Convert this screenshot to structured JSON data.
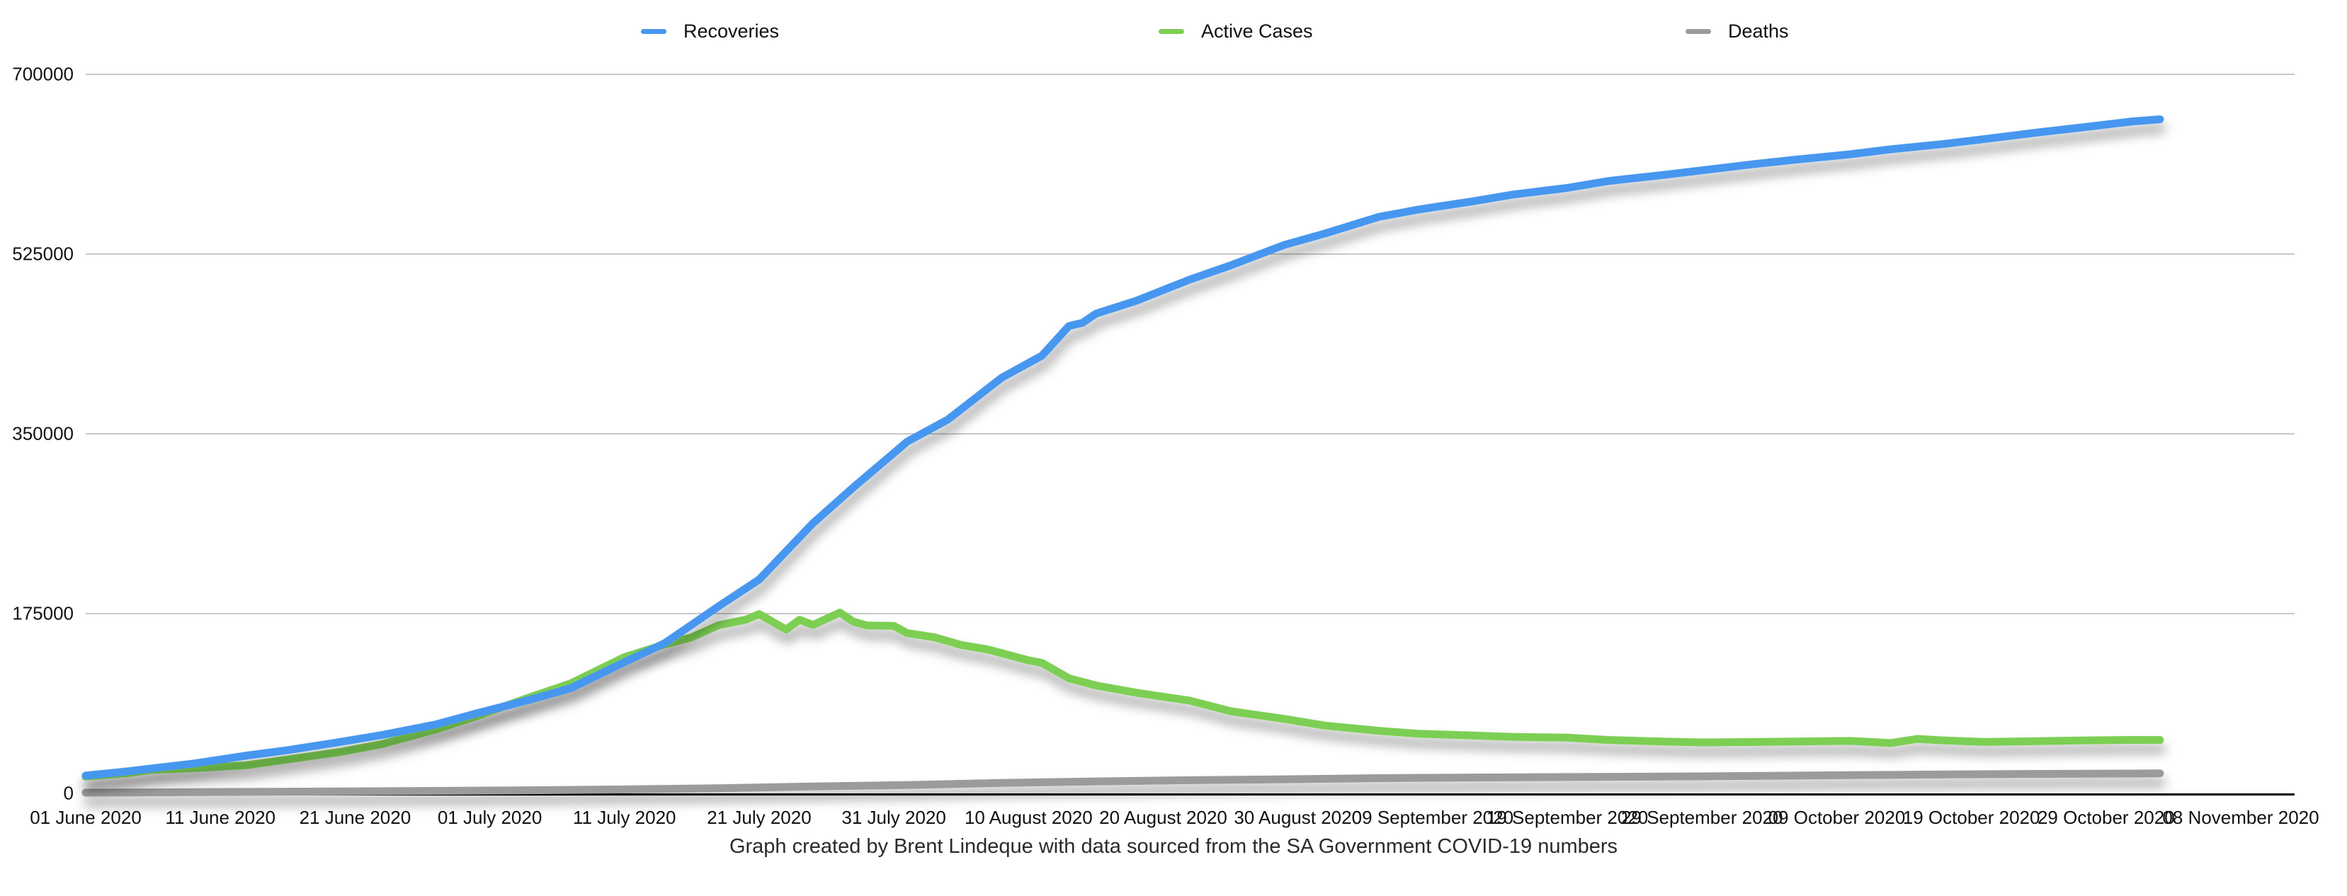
{
  "legend": {
    "items": [
      {
        "label": "Recoveries",
        "color": "#4797f0"
      },
      {
        "label": "Active Cases",
        "color": "#7ccf52"
      },
      {
        "label": "Deaths",
        "color": "#9b9b9b"
      }
    ]
  },
  "caption": "Graph created by Brent Lindeque with data sourced from the SA Government COVID-19 numbers",
  "chart_data": {
    "type": "line",
    "title": "",
    "xlabel": "",
    "ylabel": "",
    "legend_position": "top",
    "grid": "horizontal",
    "ylim": [
      0,
      700000
    ],
    "y_tick_values": [
      700000,
      525000,
      350000,
      175000,
      0
    ],
    "y_tick_labels": [
      "700000",
      "525000",
      "350000",
      "175000",
      "0"
    ],
    "x_tick_days": [
      0,
      10,
      20,
      30,
      40,
      50,
      60,
      70,
      80,
      90,
      100,
      110,
      120,
      130,
      140,
      150,
      160
    ],
    "x_tick_labels": [
      "01 June 2020",
      "11 June 2020",
      "21 June 2020",
      "01 July 2020",
      "11 July 2020",
      "21 July 2020",
      "31 July 2020",
      "10 August 2020",
      "20 August 2020",
      "30 August 2020",
      "09 September 2020",
      "19 September 2020",
      "29 September 2020",
      "09 October 2020",
      "19 October 2020",
      "29 October 2020",
      "08 November 2020"
    ],
    "x_unit": "days since 01 June 2020",
    "series": [
      {
        "name": "Recoveries",
        "color": "#4797f0",
        "points": [
          [
            0,
            17291
          ],
          [
            3,
            21311
          ],
          [
            5,
            24364
          ],
          [
            8,
            29006
          ],
          [
            12,
            36850
          ],
          [
            15,
            42063
          ],
          [
            19,
            50326
          ],
          [
            22,
            56874
          ],
          [
            26,
            67094
          ],
          [
            29,
            77751
          ],
          [
            33,
            91227
          ],
          [
            36,
            102299
          ],
          [
            40,
            127715
          ],
          [
            43,
            146279
          ],
          [
            47,
            182230
          ],
          [
            50,
            208144
          ],
          [
            54,
            263054
          ],
          [
            57,
            297967
          ],
          [
            61,
            342461
          ],
          [
            64,
            363751
          ],
          [
            68,
            404568
          ],
          [
            71,
            426125
          ],
          [
            73,
            455000
          ],
          [
            74,
            458000
          ],
          [
            75,
            466941
          ],
          [
            78,
            479500
          ],
          [
            82,
            500306
          ],
          [
            85,
            514000
          ],
          [
            89,
            533935
          ],
          [
            92,
            545000
          ],
          [
            96,
            561204
          ],
          [
            99,
            568500
          ],
          [
            103,
            576423
          ],
          [
            106,
            583000
          ],
          [
            110,
            589434
          ],
          [
            113,
            596000
          ],
          [
            117,
            601818
          ],
          [
            120,
            606500
          ],
          [
            124,
            612763
          ],
          [
            127,
            617000
          ],
          [
            131,
            622153
          ],
          [
            134,
            627000
          ],
          [
            138,
            632277
          ],
          [
            141,
            637000
          ],
          [
            145,
            643523
          ],
          [
            148,
            648000
          ],
          [
            152,
            654182
          ],
          [
            154,
            656210
          ]
        ]
      },
      {
        "name": "Active Cases",
        "color": "#7ccf52",
        "points": [
          [
            0,
            16361
          ],
          [
            3,
            19500
          ],
          [
            5,
            22923
          ],
          [
            8,
            24500
          ],
          [
            12,
            27463
          ],
          [
            15,
            33000
          ],
          [
            19,
            40478
          ],
          [
            22,
            48000
          ],
          [
            26,
            62293
          ],
          [
            29,
            75000
          ],
          [
            33,
            93724
          ],
          [
            36,
            107000
          ],
          [
            40,
            132609
          ],
          [
            43,
            145000
          ],
          [
            45,
            152000
          ],
          [
            47,
            163701
          ],
          [
            49,
            169000
          ],
          [
            50,
            174500
          ],
          [
            52,
            159500
          ],
          [
            53,
            169000
          ],
          [
            54,
            164000
          ],
          [
            56,
            176000
          ],
          [
            57,
            167000
          ],
          [
            58,
            163500
          ],
          [
            60,
            163000
          ],
          [
            61,
            156000
          ],
          [
            63,
            152000
          ],
          [
            65,
            144500
          ],
          [
            67,
            140000
          ],
          [
            70,
            129500
          ],
          [
            71,
            127000
          ],
          [
            73,
            112000
          ],
          [
            75,
            105035
          ],
          [
            78,
            98000
          ],
          [
            82,
            90189
          ],
          [
            85,
            80000
          ],
          [
            89,
            72454
          ],
          [
            92,
            66000
          ],
          [
            96,
            60901
          ],
          [
            99,
            58000
          ],
          [
            103,
            56364
          ],
          [
            106,
            55000
          ],
          [
            110,
            54282
          ],
          [
            113,
            52000
          ],
          [
            117,
            50399
          ],
          [
            120,
            49600
          ],
          [
            124,
            50015
          ],
          [
            127,
            50500
          ],
          [
            131,
            51070
          ],
          [
            134,
            49000
          ],
          [
            136,
            53000
          ],
          [
            138,
            51446
          ],
          [
            141,
            50000
          ],
          [
            145,
            50874
          ],
          [
            148,
            51500
          ],
          [
            152,
            51994
          ],
          [
            154,
            51920
          ]
        ]
      },
      {
        "name": "Deaths",
        "color": "#9b9b9b",
        "points": [
          [
            0,
            705
          ],
          [
            5,
            998
          ],
          [
            12,
            1423
          ],
          [
            19,
            1877
          ],
          [
            26,
            2413
          ],
          [
            33,
            3026
          ],
          [
            40,
            3860
          ],
          [
            47,
            4948
          ],
          [
            54,
            6655
          ],
          [
            61,
            8153
          ],
          [
            68,
            10210
          ],
          [
            75,
            11677
          ],
          [
            82,
            12843
          ],
          [
            89,
            13743
          ],
          [
            96,
            14779
          ],
          [
            103,
            15427
          ],
          [
            110,
            15940
          ],
          [
            117,
            16312
          ],
          [
            124,
            16938
          ],
          [
            131,
            17673
          ],
          [
            138,
            18408
          ],
          [
            145,
            18968
          ],
          [
            152,
            19276
          ],
          [
            154,
            19465
          ]
        ]
      }
    ]
  }
}
